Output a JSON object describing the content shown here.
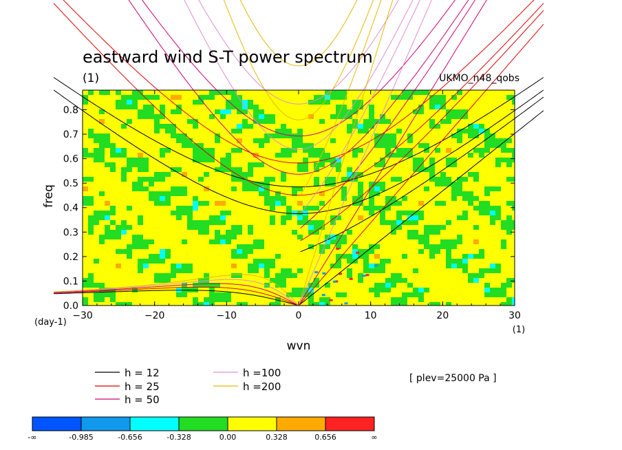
{
  "chart_data": {
    "type": "heatmap",
    "title": "eastward wind S-T power spectrum",
    "subtitle": "(1)",
    "model": "UKMO_n48_qobs",
    "xlabel": "wvn",
    "ylabel": "freq",
    "x_unit_label": "(1)",
    "y_unit_label": "(day-1)",
    "xlim": [
      -30,
      30
    ],
    "ylim": [
      0,
      0.88
    ],
    "x_ticks": [
      "-30",
      "-20",
      "-10",
      "0",
      "10",
      "20",
      "30"
    ],
    "y_ticks": [
      "0.0",
      "0.1",
      "0.2",
      "0.3",
      "0.4",
      "0.5",
      "0.6",
      "0.7",
      "0.8"
    ],
    "annotation": "[ plev=25000 Pa ]",
    "dispersion_curves": [
      {
        "name": "h = 12",
        "h": 12,
        "color": "#000000"
      },
      {
        "name": "h = 25",
        "h": 25,
        "color": "#dd0000"
      },
      {
        "name": "h = 50",
        "h": 50,
        "color": "#cc0077"
      },
      {
        "name": "h =100",
        "h": 100,
        "color": "#e08ed0"
      },
      {
        "name": "h =200",
        "h": 200,
        "color": "#e8b800"
      }
    ],
    "colorbar": {
      "labels": [
        "-∞",
        "-0.985",
        "-0.656",
        "-0.328",
        "0.00",
        "0.328",
        "0.656",
        "∞"
      ],
      "colors": [
        "#0055ff",
        "#1199ee",
        "#00ffff",
        "#22dd22",
        "#ffff00",
        "#ffaa00",
        "#ff2222"
      ]
    }
  }
}
